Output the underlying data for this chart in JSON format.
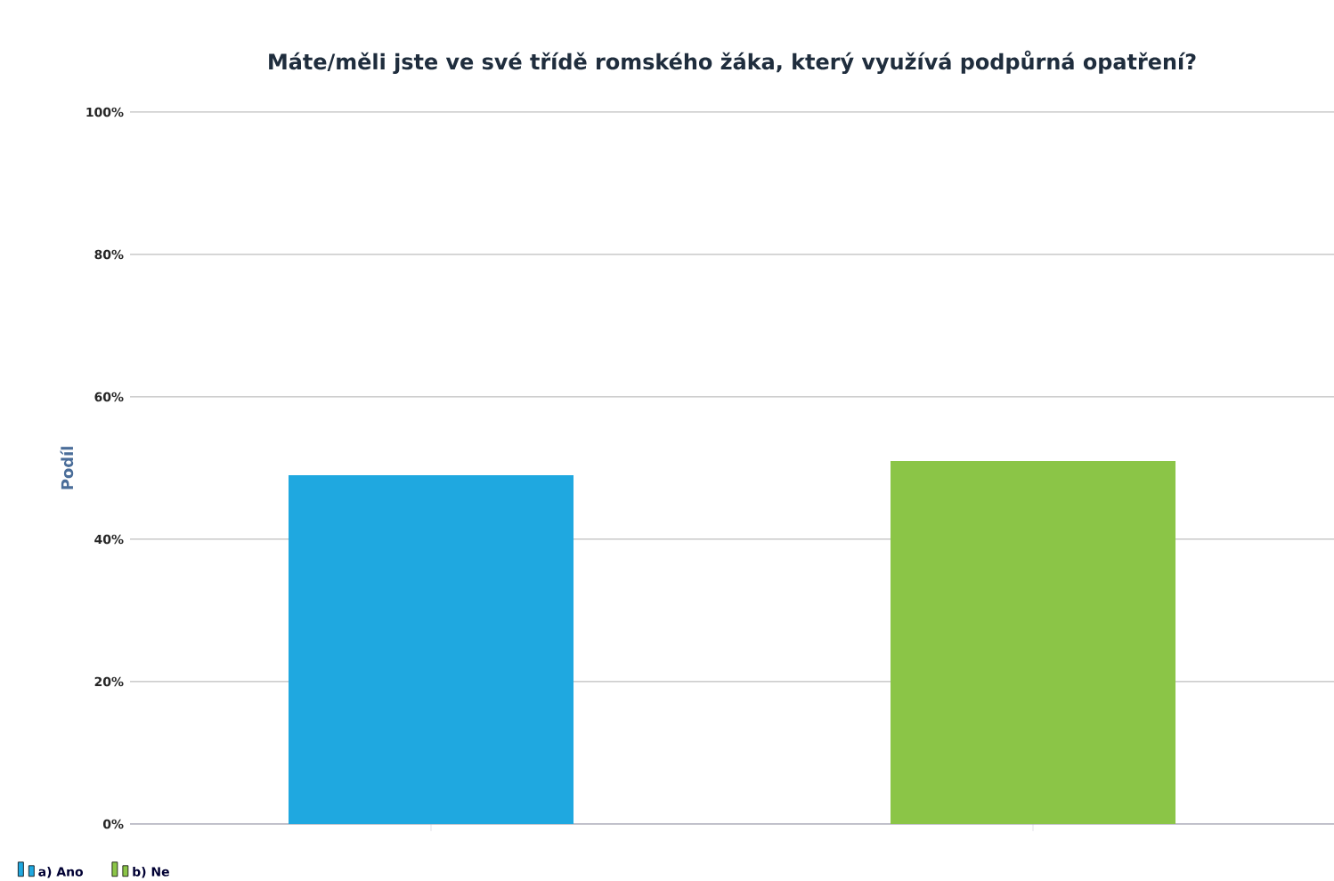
{
  "chart_data": {
    "type": "bar",
    "title": "Máte/měli jste ve své třídě romského žáka, který využívá podpůrná opatření?",
    "ylabel": "Podíl",
    "categories": [
      null,
      null
    ],
    "series": [
      {
        "name": "a) Ano",
        "color": "#1fa8e0",
        "values": [
          49,
          null
        ]
      },
      {
        "name": "b) Ne",
        "color": "#8bc547",
        "values": [
          null,
          51
        ]
      }
    ],
    "ylim": [
      0,
      100
    ],
    "yticks": [
      {
        "value": 0,
        "label": "0%"
      },
      {
        "value": 20,
        "label": "20%"
      },
      {
        "value": 40,
        "label": "40%"
      },
      {
        "value": 60,
        "label": "60%"
      },
      {
        "value": 80,
        "label": "80%"
      },
      {
        "value": 100,
        "label": "100%"
      }
    ],
    "grid": "y",
    "legend": "bottom left"
  }
}
